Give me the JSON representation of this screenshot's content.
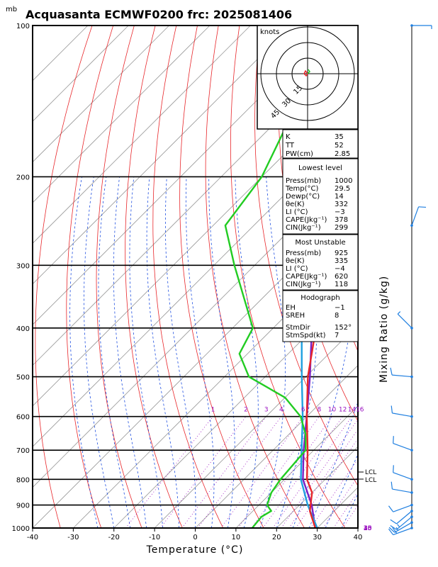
{
  "title": "Acquasanta ECMWF0200  frc: 2025081406",
  "pressure_unit": "mb",
  "xlabel": "Temperature (°C)",
  "mixing_ratio_label": "Mixing Ratio (g/kg)",
  "hodograph": {
    "unit_label": "knots",
    "ring_labels": [
      "15",
      "30",
      "45"
    ]
  },
  "colors": {
    "temperature": "#e8262a",
    "dewpoint": "#22cc22",
    "parcel": "#7a1fc4",
    "virtual": "#1fa0e0",
    "isotherm": "#999999",
    "dry_adiabat": "#e8262a",
    "moist_adiabat": "#1f4fe0",
    "mixing_ratio": "#9a10c0",
    "wind": "#1f7fe0"
  },
  "indices": {
    "top": [
      {
        "label": "K",
        "value": "35"
      },
      {
        "label": "TT",
        "value": "52"
      },
      {
        "label": "PW(cm)",
        "value": "2.85"
      }
    ],
    "lowest_level": {
      "heading": "Lowest level",
      "rows": [
        {
          "label": "Press(mb)",
          "value": "1000"
        },
        {
          "label": "Temp(°C)",
          "value": "29.5"
        },
        {
          "label": "Dewp(°C)",
          "value": "14"
        },
        {
          "label": "θe(K)",
          "value": "332"
        },
        {
          "label": "LI (°C)",
          "value": "−3"
        },
        {
          "label": "CAPE(Jkg⁻¹)",
          "value": "378"
        },
        {
          "label": "CIN(Jkg⁻¹)",
          "value": "299"
        }
      ]
    },
    "most_unstable": {
      "heading": "Most Unstable",
      "rows": [
        {
          "label": "Press(mb)",
          "value": "925"
        },
        {
          "label": "θe(K)",
          "value": "335"
        },
        {
          "label": "LI (°C)",
          "value": "−4"
        },
        {
          "label": "CAPE(Jkg⁻¹)",
          "value": "620"
        },
        {
          "label": "CIN(Jkg⁻¹)",
          "value": "118"
        }
      ]
    },
    "hodograph_box": {
      "heading": "Hodograph",
      "rows": [
        {
          "label": "EH",
          "value": "−1"
        },
        {
          "label": "SREH",
          "value": "8"
        },
        {
          "label": "StmDir",
          "value": "152°"
        },
        {
          "label": "StmSpd(kt)",
          "value": "7"
        }
      ]
    }
  },
  "lcl_labels": [
    "LCL",
    "LCL"
  ],
  "chart_data": {
    "type": "line",
    "title": "Acquasanta ECMWF0200  frc: 2025081406",
    "xlabel": "Temperature (°C)",
    "ylabel": "mb",
    "x_ticks": [
      -40,
      -30,
      -20,
      -10,
      0,
      10,
      20,
      30,
      40
    ],
    "y_ticks": [
      1000,
      900,
      800,
      700,
      600,
      500,
      400,
      300,
      200,
      100
    ],
    "xlim": [
      -40,
      40
    ],
    "ylim": [
      1000,
      100
    ],
    "y_scale": "log",
    "skew": true,
    "mixing_ratio_lines": [
      "1",
      "2",
      "3",
      "4",
      "6",
      "8",
      "10",
      "12",
      "14",
      "16",
      "18",
      "20",
      "25",
      "30",
      "35",
      "40"
    ],
    "series": [
      {
        "key": "temperature",
        "points": [
          [
            1000,
            29.5
          ],
          [
            925,
            24
          ],
          [
            850,
            20
          ],
          [
            800,
            15.5
          ],
          [
            700,
            8.5
          ],
          [
            600,
            0
          ],
          [
            500,
            -9.5
          ],
          [
            400,
            -19.5
          ],
          [
            300,
            -32.5
          ],
          [
            250,
            -43
          ],
          [
            200,
            -53.5
          ],
          [
            150,
            -66
          ],
          [
            100,
            -79
          ]
        ]
      },
      {
        "key": "dewpoint",
        "points": [
          [
            1000,
            14
          ],
          [
            950,
            13.5
          ],
          [
            925,
            14.5
          ],
          [
            900,
            12
          ],
          [
            850,
            10
          ],
          [
            800,
            9
          ],
          [
            700,
            8
          ],
          [
            650,
            4
          ],
          [
            600,
            -1.5
          ],
          [
            550,
            -10
          ],
          [
            500,
            -24
          ],
          [
            450,
            -32
          ],
          [
            400,
            -35
          ],
          [
            300,
            -55
          ],
          [
            250,
            -67
          ],
          [
            200,
            -70
          ],
          [
            150,
            -78
          ],
          [
            100,
            -87
          ]
        ]
      },
      {
        "key": "parcel",
        "points": [
          [
            1000,
            29.5
          ],
          [
            900,
            23
          ],
          [
            800,
            14.5
          ],
          [
            770,
            12.5
          ],
          [
            700,
            7.5
          ],
          [
            600,
            0
          ],
          [
            500,
            -9
          ],
          [
            400,
            -20.5
          ],
          [
            300,
            -35
          ],
          [
            250,
            -45
          ],
          [
            200,
            -55
          ],
          [
            150,
            -70
          ],
          [
            100,
            -90
          ]
        ]
      },
      {
        "key": "virtual",
        "points": [
          [
            1000,
            30
          ],
          [
            900,
            22
          ],
          [
            800,
            14
          ],
          [
            770,
            12
          ],
          [
            700,
            7
          ],
          [
            600,
            -1
          ],
          [
            500,
            -11
          ],
          [
            400,
            -23
          ],
          [
            300,
            -37
          ],
          [
            250,
            -48
          ],
          [
            200,
            -58
          ],
          [
            150,
            -73
          ],
          [
            100,
            -92
          ]
        ]
      }
    ],
    "wind_barbs": [
      {
        "p": 1000,
        "dir": 250,
        "spd": 20
      },
      {
        "p": 975,
        "dir": 240,
        "spd": 15
      },
      {
        "p": 950,
        "dir": 230,
        "spd": 15
      },
      {
        "p": 925,
        "dir": 230,
        "spd": 10
      },
      {
        "p": 900,
        "dir": 250,
        "spd": 10
      },
      {
        "p": 850,
        "dir": 280,
        "spd": 10
      },
      {
        "p": 800,
        "dir": 290,
        "spd": 10
      },
      {
        "p": 700,
        "dir": 290,
        "spd": 10
      },
      {
        "p": 600,
        "dir": 280,
        "spd": 10
      },
      {
        "p": 500,
        "dir": 275,
        "spd": 10
      },
      {
        "p": 400,
        "dir": 315,
        "spd": 5
      },
      {
        "p": 250,
        "dir": 20,
        "spd": 10
      },
      {
        "p": 100,
        "dir": 90,
        "spd": 5
      }
    ]
  }
}
